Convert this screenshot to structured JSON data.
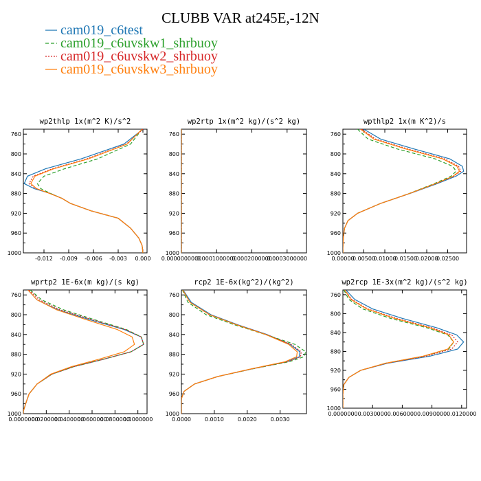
{
  "figure": {
    "title": "CLUBB VAR at245E,-12N"
  },
  "legend": [
    {
      "name": "cam019_c6test",
      "color": "#1f77b4",
      "dash": "solid"
    },
    {
      "name": "cam019_c6uvskw1_shrbuoy",
      "color": "#2ca02c",
      "dash": "dashed"
    },
    {
      "name": "cam019_c6uvskw2_shrbuoy",
      "color": "#d62728",
      "dash": "dotted"
    },
    {
      "name": "cam019_c6uvskw3_shrbuoy",
      "color": "#ff7f0e",
      "dash": "solid"
    }
  ],
  "chart_data": [
    {
      "type": "line",
      "title": "wp2thlp  1x(m^2 K)/s^2",
      "xlim": [
        -0.0145,
        0.0005
      ],
      "ylim": [
        1000,
        750
      ],
      "xticks": [
        -0.012,
        -0.009,
        -0.006,
        -0.003,
        0.0
      ],
      "xtick_labels": [
        "-0.012",
        "-0.009",
        "-0.006",
        "-0.003",
        "0.000"
      ],
      "yticks": [
        760,
        800,
        840,
        880,
        920,
        960,
        1000
      ],
      "ytick_labels": [
        "760",
        "800",
        "840",
        "880",
        "920",
        "960",
        "1000"
      ],
      "y": [
        750,
        780,
        810,
        830,
        845,
        860,
        870,
        880,
        890,
        900,
        915,
        930,
        950,
        970,
        985,
        1000
      ],
      "series": [
        {
          "name": "cam019_c6test",
          "values": [
            0.0,
            -0.0023,
            -0.0075,
            -0.0118,
            -0.014,
            -0.0144,
            -0.0132,
            -0.0112,
            -0.0098,
            -0.0088,
            -0.0063,
            -0.003,
            -0.0015,
            -0.0005,
            -0.0001,
            0.0
          ]
        },
        {
          "name": "cam019_c6uvskw1_shrbuoy",
          "values": [
            -0.0001,
            -0.0015,
            -0.0055,
            -0.0095,
            -0.012,
            -0.0128,
            -0.0124,
            -0.0112,
            -0.0098,
            -0.0088,
            -0.0063,
            -0.003,
            -0.0015,
            -0.0005,
            -0.0001,
            0.0
          ]
        },
        {
          "name": "cam019_c6uvskw2_shrbuoy",
          "values": [
            0.0,
            -0.002,
            -0.0068,
            -0.011,
            -0.0133,
            -0.0138,
            -0.013,
            -0.0113,
            -0.0098,
            -0.0088,
            -0.0063,
            -0.003,
            -0.0015,
            -0.0005,
            -0.0001,
            0.0
          ]
        },
        {
          "name": "cam019_c6uvskw3_shrbuoy",
          "values": [
            -0.0001,
            -0.0019,
            -0.0066,
            -0.0108,
            -0.0131,
            -0.0136,
            -0.0129,
            -0.0113,
            -0.0098,
            -0.0088,
            -0.0063,
            -0.003,
            -0.0015,
            -0.0005,
            -0.0001,
            0.0
          ]
        }
      ]
    },
    {
      "type": "line",
      "title": "wp2rtp  1x(m^2 kg)/(s^2 kg)",
      "xlim": [
        0.0,
        0.000355
      ],
      "ylim": [
        1000,
        750
      ],
      "xticks": [
        0.0,
        0.0001,
        0.0002,
        0.0003
      ],
      "xtick_labels": [
        "0.0000000000",
        "0.0001000000",
        "0.0002000000",
        "0.0003000000"
      ],
      "yticks": [
        760,
        800,
        840,
        880,
        920,
        960,
        1000
      ],
      "ytick_labels": [
        "760",
        "800",
        "840",
        "880",
        "920",
        "960",
        "1000"
      ],
      "y": [
        750,
        770,
        790,
        810,
        830,
        850,
        865,
        880,
        895,
        910,
        925,
        940,
        960,
        980,
        1000
      ],
      "series": [
        {
          "name": "cam019_c6test",
          "values": [
            0.0,
            0.0,
            0.0,
            0.0,
            0.0,
            0.0,
            0.0,
            0.0,
            0.0,
            0.0,
            0.0,
            0.0,
            0.0,
            0.0,
            0.0
          ]
        },
        {
          "name": "cam019_c6uvskw1_shrbuoy",
          "values": [
            0.0,
            0.0,
            0.0,
            0.0,
            0.0,
            0.0,
            0.0,
            0.0,
            0.0,
            0.0,
            0.0,
            0.0,
            0.0,
            0.0,
            0.0
          ]
        },
        {
          "name": "cam019_c6uvskw2_shrbuoy",
          "values": [
            0.0,
            0.0,
            0.0,
            0.0,
            0.0,
            0.0,
            0.0,
            0.0,
            0.0,
            0.0,
            0.0,
            0.0,
            0.0,
            0.0,
            0.0
          ]
        },
        {
          "name": "cam019_c6uvskw3_shrbuoy",
          "values": [
            0.0,
            0.0,
            0.0,
            0.0,
            0.0,
            0.0,
            0.0,
            0.0,
            0.0,
            0.0,
            0.0,
            0.0,
            0.0,
            0.0,
            0.0
          ]
        }
      ]
    },
    {
      "type": "line",
      "title": "wpthlp2  1x(m K^2)/s",
      "xlim": [
        0.0,
        0.0295
      ],
      "ylim": [
        1000,
        750
      ],
      "xticks": [
        0.0,
        0.005,
        0.01,
        0.015,
        0.02,
        0.025
      ],
      "xtick_labels": [
        "0.00000",
        "0.00500",
        "0.01000",
        "0.01500",
        "0.02000",
        "0.02500"
      ],
      "yticks": [
        760,
        800,
        840,
        880,
        920,
        960,
        1000
      ],
      "ytick_labels": [
        "760",
        "800",
        "840",
        "880",
        "920",
        "960",
        "1000"
      ],
      "y": [
        750,
        770,
        790,
        810,
        825,
        835,
        845,
        860,
        880,
        900,
        920,
        935,
        950,
        970,
        990,
        1000
      ],
      "series": [
        {
          "name": "cam019_c6test",
          "values": [
            0.005,
            0.009,
            0.017,
            0.0255,
            0.0285,
            0.0288,
            0.027,
            0.0225,
            0.016,
            0.009,
            0.0035,
            0.0012,
            0.0004,
            0.0001,
            0.0,
            0.0
          ]
        },
        {
          "name": "cam019_c6uvskw1_shrbuoy",
          "values": [
            0.0035,
            0.006,
            0.013,
            0.022,
            0.0262,
            0.027,
            0.0258,
            0.0218,
            0.0158,
            0.009,
            0.0035,
            0.0012,
            0.0004,
            0.0001,
            0.0,
            0.0
          ]
        },
        {
          "name": "cam019_c6uvskw2_shrbuoy",
          "values": [
            0.0045,
            0.0078,
            0.0155,
            0.0243,
            0.0276,
            0.0281,
            0.0265,
            0.0222,
            0.0159,
            0.009,
            0.0035,
            0.0012,
            0.0004,
            0.0001,
            0.0,
            0.0
          ]
        },
        {
          "name": "cam019_c6uvskw3_shrbuoy",
          "values": [
            0.0042,
            0.0074,
            0.015,
            0.0238,
            0.0272,
            0.0278,
            0.0263,
            0.0221,
            0.0159,
            0.009,
            0.0035,
            0.0012,
            0.0004,
            0.0001,
            0.0,
            0.0
          ]
        }
      ]
    },
    {
      "type": "line",
      "title": "wprtp2  1E-6x(m kg)/(s kg)",
      "xlim": [
        0.0,
        1.08e-05
      ],
      "ylim": [
        1000,
        750
      ],
      "xticks": [
        0.0,
        2e-06,
        4e-06,
        6e-06,
        8e-06,
        1e-05
      ],
      "xtick_labels": [
        "0.0000000",
        "0.0200000",
        "0.0400000",
        "0.0600000",
        "0.0800000",
        "0.1000000"
      ],
      "yticks": [
        760,
        800,
        840,
        880,
        920,
        960,
        1000
      ],
      "ytick_labels": [
        "760",
        "800",
        "840",
        "880",
        "920",
        "960",
        "1000"
      ],
      "y": [
        750,
        770,
        790,
        810,
        830,
        845,
        860,
        875,
        890,
        905,
        920,
        940,
        960,
        980,
        995,
        1000
      ],
      "series": [
        {
          "name": "cam019_c6test",
          "values": [
            4e-07,
            1.2e-06,
            3e-06,
            5.8e-06,
            8.8e-06,
            1.03e-05,
            1.05e-05,
            9.4e-06,
            7e-06,
            4.4e-06,
            2.5e-06,
            1.2e-06,
            5e-07,
            2e-07,
            0.0,
            0.0
          ]
        },
        {
          "name": "cam019_c6uvskw1_shrbuoy",
          "values": [
            6e-07,
            1.6e-06,
            3.5e-06,
            6.2e-06,
            9e-06,
            1.03e-05,
            1.05e-05,
            9.4e-06,
            7e-06,
            4.4e-06,
            2.5e-06,
            1.2e-06,
            5e-07,
            2e-07,
            0.0,
            0.0
          ]
        },
        {
          "name": "cam019_c6uvskw2_shrbuoy",
          "values": [
            5e-07,
            1.4e-06,
            3.2e-06,
            6e-06,
            8.9e-06,
            1.03e-05,
            1.05e-05,
            9.4e-06,
            7e-06,
            4.4e-06,
            2.5e-06,
            1.2e-06,
            5e-07,
            2e-07,
            0.0,
            0.0
          ]
        },
        {
          "name": "cam019_c6uvskw3_shrbuoy",
          "values": [
            4e-07,
            1.2e-06,
            2.9e-06,
            5.5e-06,
            8.2e-06,
            9.5e-06,
            9.7e-06,
            8.8e-06,
            6.6e-06,
            4.2e-06,
            2.4e-06,
            1.2e-06,
            5e-07,
            2e-07,
            0.0,
            0.0
          ]
        }
      ]
    },
    {
      "type": "line",
      "title": "rcp2  1E-6x(kg^2)/(kg^2)",
      "xlim": [
        0.0,
        3.8e-06
      ],
      "ylim": [
        1000,
        750
      ],
      "xticks": [
        0.0,
        1e-06,
        2e-06,
        3e-06
      ],
      "xtick_labels": [
        "0.0000",
        "0.0010",
        "0.0020",
        "0.0030"
      ],
      "yticks": [
        760,
        800,
        840,
        880,
        920,
        960,
        1000
      ],
      "ytick_labels": [
        "760",
        "800",
        "840",
        "880",
        "920",
        "960",
        "1000"
      ],
      "y": [
        750,
        775,
        800,
        820,
        840,
        860,
        875,
        885,
        895,
        910,
        925,
        940,
        955,
        970,
        1000
      ],
      "series": [
        {
          "name": "cam019_c6test",
          "values": [
            5e-08,
            3e-07,
            9e-07,
            1.7e-06,
            2.6e-06,
            3.3e-06,
            3.6e-06,
            3.58e-06,
            3.2e-06,
            2.1e-06,
            1.1e-06,
            4e-07,
            8e-08,
            0.0,
            0.0
          ]
        },
        {
          "name": "cam019_c6uvskw1_shrbuoy",
          "values": [
            3e-08,
            2e-07,
            7.5e-07,
            1.6e-06,
            2.55e-06,
            3.45e-06,
            3.78e-06,
            3.72e-06,
            3.28e-06,
            2.12e-06,
            1.1e-06,
            4e-07,
            8e-08,
            0.0,
            0.0
          ]
        },
        {
          "name": "cam019_c6uvskw2_shrbuoy",
          "values": [
            4e-08,
            2.6e-07,
            8.5e-07,
            1.67e-06,
            2.58e-06,
            3.34e-06,
            3.64e-06,
            3.62e-06,
            3.22e-06,
            2.11e-06,
            1.1e-06,
            4e-07,
            8e-08,
            0.0,
            0.0
          ]
        },
        {
          "name": "cam019_c6uvskw3_shrbuoy",
          "values": [
            4e-08,
            2.6e-07,
            8.6e-07,
            1.66e-06,
            2.56e-06,
            3.26e-06,
            3.52e-06,
            3.5e-06,
            3.15e-06,
            2.08e-06,
            1.1e-06,
            4e-07,
            8e-08,
            0.0,
            0.0
          ]
        }
      ]
    },
    {
      "type": "line",
      "title": "wp2rcp  1E-3x(m^2 kg)/(s^2 kg)",
      "xlim": [
        0.0,
        1.25e-05
      ],
      "ylim": [
        1000,
        750
      ],
      "xticks": [
        0.0,
        3e-06,
        6e-06,
        9e-06,
        1.2e-05
      ],
      "xtick_labels": [
        "0.0000000",
        "0.0030000",
        "0.0060000",
        "0.0090000",
        "0.0120000"
      ],
      "yticks": [
        760,
        800,
        840,
        880,
        920,
        960,
        1000
      ],
      "ytick_labels": [
        "760",
        "800",
        "840",
        "880",
        "920",
        "960",
        "1000"
      ],
      "y": [
        750,
        770,
        790,
        810,
        830,
        845,
        860,
        875,
        890,
        905,
        920,
        935,
        950,
        970,
        1000
      ],
      "series": [
        {
          "name": "cam019_c6test",
          "values": [
            3e-07,
            1.2e-06,
            3e-06,
            6e-06,
            9.5e-06,
            1.15e-05,
            1.22e-05,
            1.16e-05,
            8.8e-06,
            4.5e-06,
            1.8e-06,
            6e-07,
            1e-07,
            0.0,
            0.0
          ]
        },
        {
          "name": "cam019_c6uvskw1_shrbuoy",
          "values": [
            1e-07,
            6e-07,
            2e-06,
            4.8e-06,
            8.5e-06,
            1.06e-05,
            1.12e-05,
            1.07e-05,
            8.2e-06,
            4.3e-06,
            1.8e-06,
            6e-07,
            1e-07,
            0.0,
            0.0
          ]
        },
        {
          "name": "cam019_c6uvskw2_shrbuoy",
          "values": [
            2e-07,
            9e-07,
            2.5e-06,
            5.4e-06,
            9e-06,
            1.1e-05,
            1.16e-05,
            1.1e-05,
            8.4e-06,
            4.4e-06,
            1.8e-06,
            6e-07,
            1e-07,
            0.0,
            0.0
          ]
        },
        {
          "name": "cam019_c6uvskw3_shrbuoy",
          "values": [
            2e-07,
            8e-07,
            2.4e-06,
            5.2e-06,
            8.8e-06,
            1.07e-05,
            1.12e-05,
            1.06e-05,
            8.1e-06,
            4.3e-06,
            1.8e-06,
            6e-07,
            1e-07,
            0.0,
            0.0
          ]
        }
      ]
    }
  ]
}
